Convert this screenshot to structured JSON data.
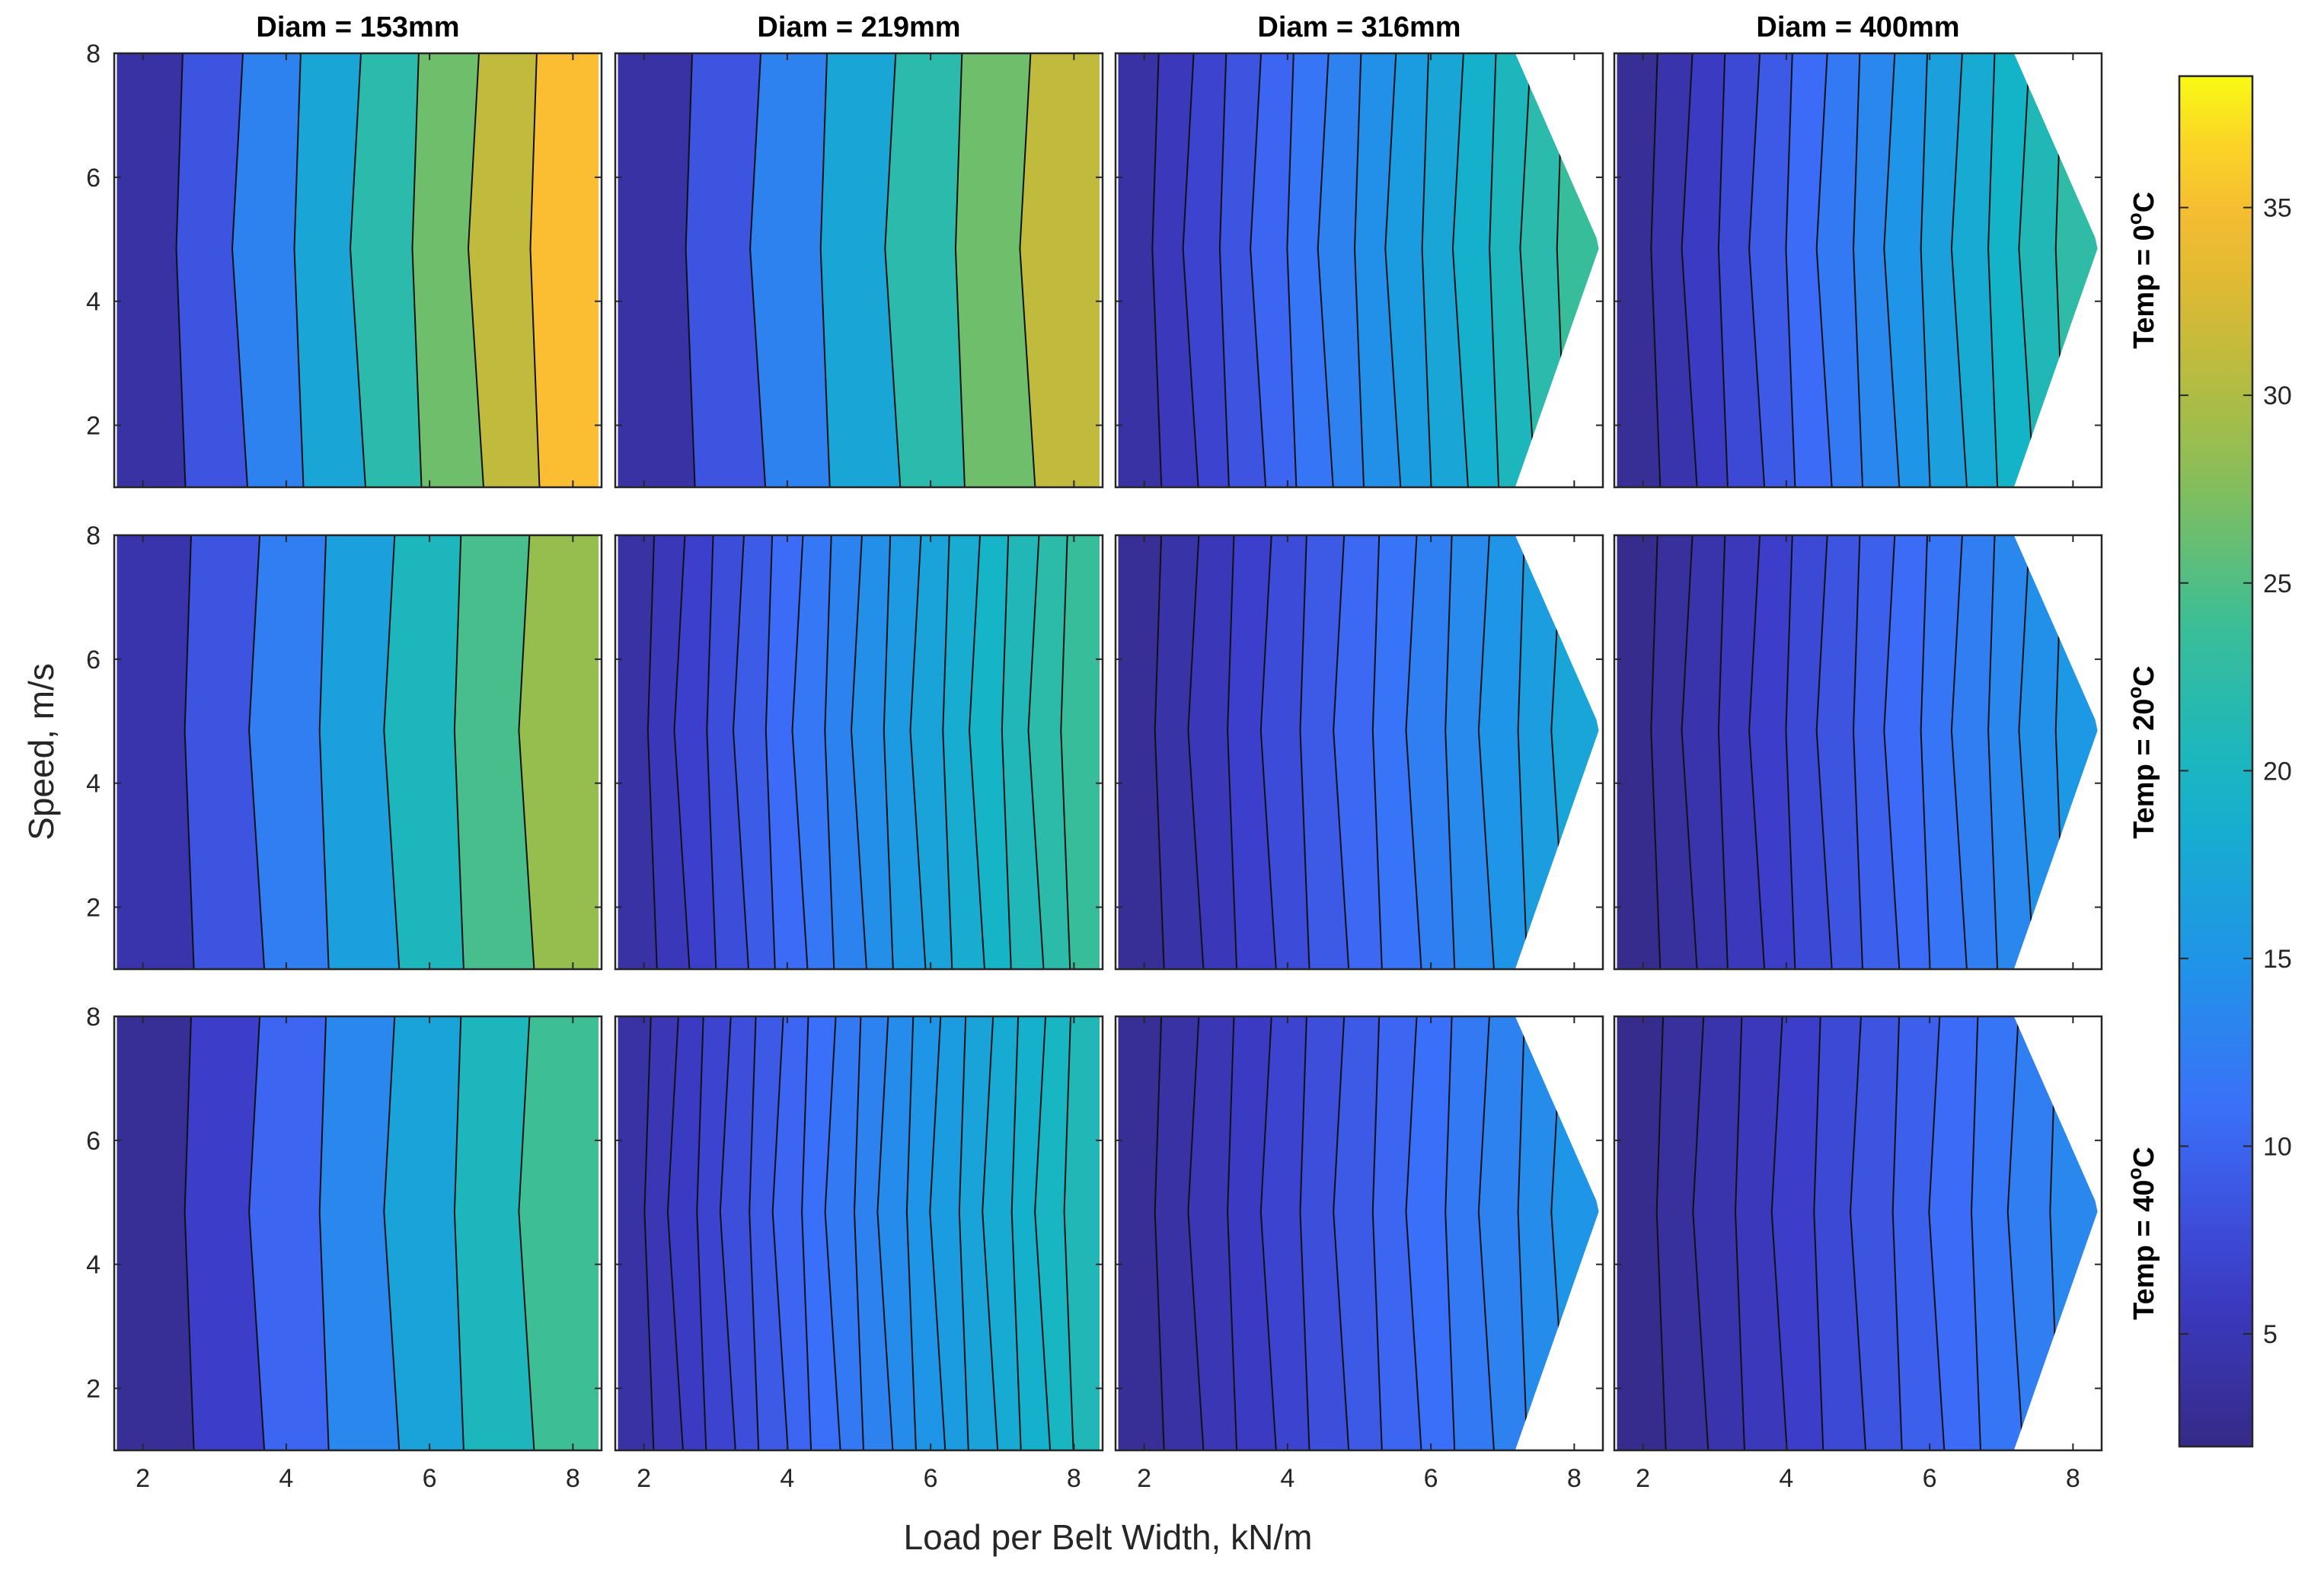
{
  "chart_data": {
    "type": "contour",
    "xlabel": "Load per Belt Width, kN/m",
    "ylabel": "Speed, m/s",
    "xlim": [
      1.6,
      8.4
    ],
    "ylim": [
      1,
      8
    ],
    "x_ticks": [
      "2",
      "4",
      "6",
      "8"
    ],
    "x_tick_values": [
      2,
      4,
      6,
      8
    ],
    "y_ticks": [
      "2",
      "4",
      "6",
      "8"
    ],
    "y_tick_values": [
      2,
      4,
      6,
      8
    ],
    "column_titles": [
      "Diam = 153mm",
      "Diam = 219mm",
      "Diam = 316mm",
      "Diam = 400mm"
    ],
    "row_titles": [
      {
        "prefix": "Temp = ",
        "number": "0",
        "degree": "o",
        "unit": "C"
      },
      {
        "prefix": "Temp = ",
        "number": "20",
        "degree": "o",
        "unit": "C"
      },
      {
        "prefix": "Temp = ",
        "number": "40",
        "degree": "o",
        "unit": "C"
      }
    ],
    "colorbar": {
      "min": 2,
      "max": 38.5,
      "ticks": [
        5,
        10,
        15,
        20,
        25,
        30,
        35
      ],
      "tick_labels": [
        "5",
        "10",
        "15",
        "20",
        "25",
        "30",
        "35"
      ],
      "colormap": "parula"
    },
    "panels": [
      {
        "row": 0,
        "col": 0,
        "diam_mm": 153,
        "temp_C": 0,
        "min": 4,
        "step": 4.5,
        "levels": 8,
        "max": 37,
        "tip_speed": null
      },
      {
        "row": 0,
        "col": 1,
        "diam_mm": 219,
        "temp_C": 0,
        "min": 4,
        "step": 4.5,
        "levels": 7,
        "max": 34,
        "tip_speed": null
      },
      {
        "row": 0,
        "col": 2,
        "diam_mm": 316,
        "temp_C": 0,
        "min": 4,
        "step": 1.5,
        "levels": 14,
        "max": 24,
        "tip_speed": 4.9
      },
      {
        "row": 0,
        "col": 3,
        "diam_mm": 400,
        "temp_C": 0,
        "min": 3,
        "step": 1.5,
        "levels": 14,
        "max": 21,
        "tip_speed": 4.9
      },
      {
        "row": 1,
        "col": 0,
        "diam_mm": 153,
        "temp_C": 20,
        "min": 4.5,
        "step": 4,
        "levels": 7,
        "max": 30,
        "tip_speed": null
      },
      {
        "row": 1,
        "col": 1,
        "diam_mm": 219,
        "temp_C": 20,
        "min": 4,
        "step": 1.3,
        "levels": 16,
        "max": 23,
        "tip_speed": null
      },
      {
        "row": 1,
        "col": 2,
        "diam_mm": 316,
        "temp_C": 20,
        "min": 3,
        "step": 1.2,
        "levels": 13,
        "max": 18,
        "tip_speed": 4.9
      },
      {
        "row": 1,
        "col": 3,
        "diam_mm": 400,
        "temp_C": 20,
        "min": 2.5,
        "step": 1.0,
        "levels": 14,
        "max": 15,
        "tip_speed": 4.9
      },
      {
        "row": 2,
        "col": 0,
        "diam_mm": 153,
        "temp_C": 40,
        "min": 3,
        "step": 3.5,
        "levels": 7,
        "max": 24,
        "tip_speed": null
      },
      {
        "row": 2,
        "col": 1,
        "diam_mm": 219,
        "temp_C": 40,
        "min": 4,
        "step": 1.0,
        "levels": 18,
        "max": 20,
        "tip_speed": null
      },
      {
        "row": 2,
        "col": 2,
        "diam_mm": 316,
        "temp_C": 40,
        "min": 3,
        "step": 1.0,
        "levels": 13,
        "max": 15,
        "tip_speed": 4.9
      },
      {
        "row": 2,
        "col": 3,
        "diam_mm": 400,
        "temp_C": 40,
        "min": 2.5,
        "step": 1.0,
        "levels": 12,
        "max": 13.5,
        "tip_speed": 4.9
      }
    ]
  }
}
